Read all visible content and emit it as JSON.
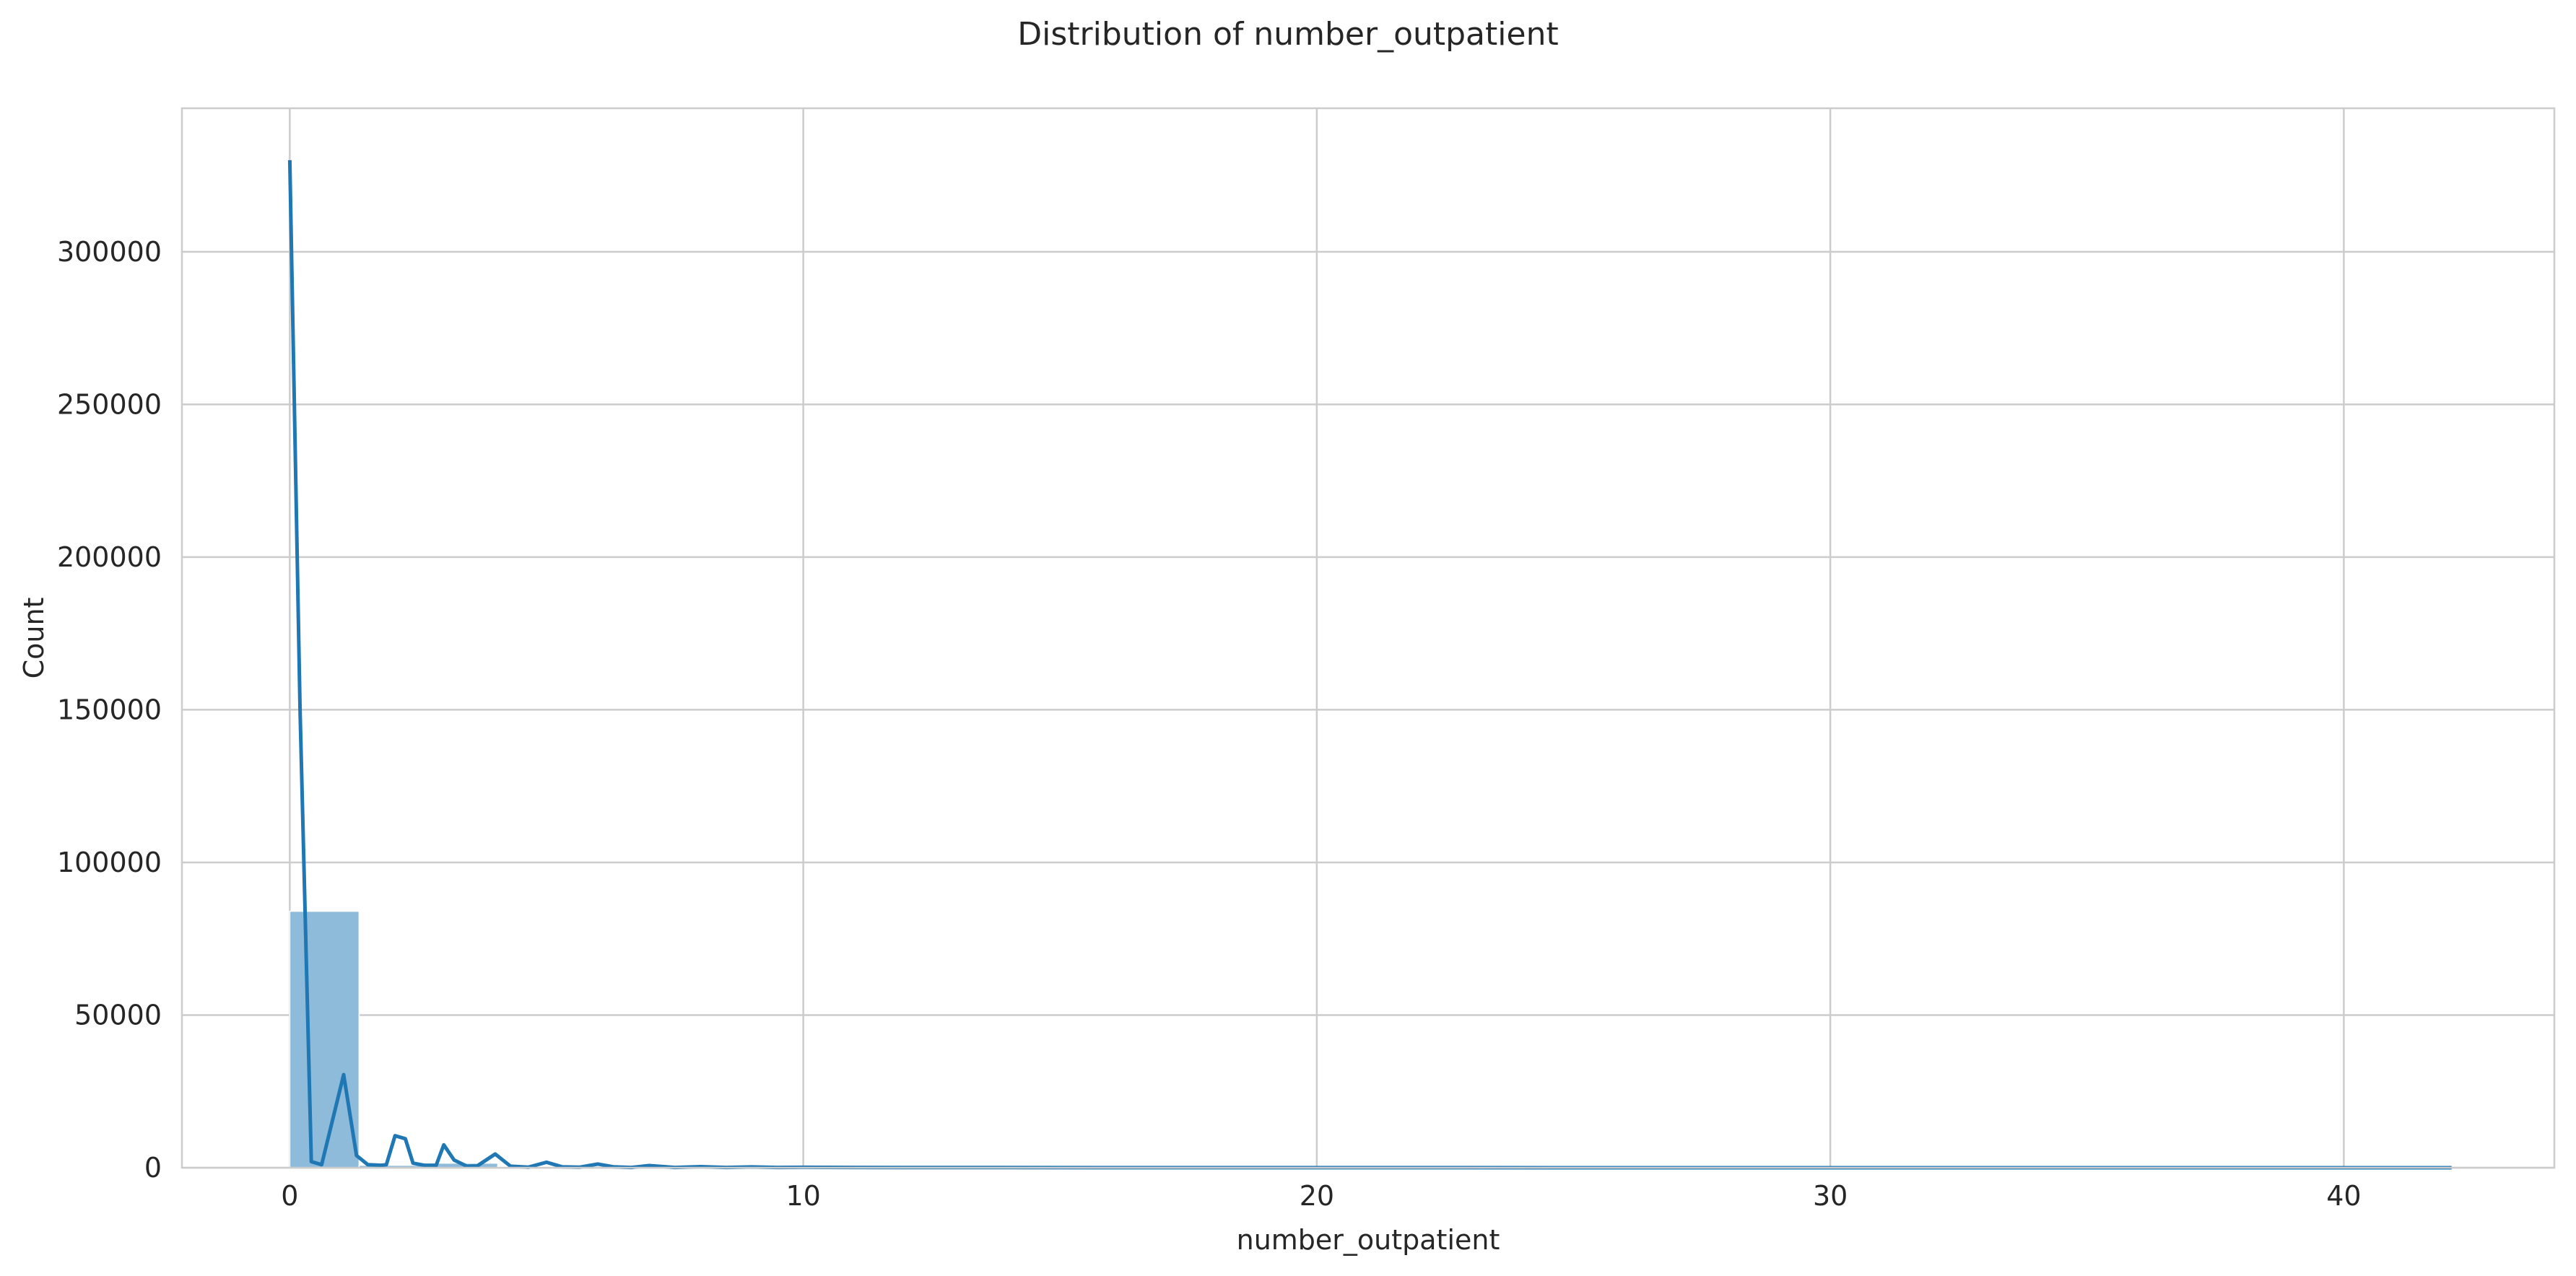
{
  "chart_data": {
    "type": "histogram",
    "title": "Distribution of number_outpatient",
    "xlabel": "number_outpatient",
    "ylabel": "Count",
    "xlim": [
      -2.1,
      44.1
    ],
    "ylim": [
      0,
      347000
    ],
    "x_ticks": [
      0,
      10,
      20,
      30,
      40
    ],
    "y_ticks": [
      0,
      50000,
      100000,
      150000,
      200000,
      250000,
      300000
    ],
    "grid": true,
    "colors": {
      "bar": "#8fbbdb",
      "line": "#1f77b4",
      "grid": "#cccccc",
      "spine": "#cccccc"
    },
    "bins": [
      {
        "x0": 0.0,
        "x1": 1.35,
        "count": 84000
      },
      {
        "x0": 1.35,
        "x1": 2.7,
        "count": 800
      },
      {
        "x0": 2.7,
        "x1": 4.05,
        "count": 1500
      },
      {
        "x0": 4.05,
        "x1": 5.4,
        "count": 300
      }
    ],
    "kde_line": {
      "x": [
        0.0,
        0.2,
        0.42,
        0.62,
        1.05,
        1.3,
        1.52,
        1.78,
        1.88,
        2.05,
        2.25,
        2.4,
        2.62,
        2.85,
        3.0,
        3.2,
        3.45,
        3.65,
        4.0,
        4.15,
        4.3,
        4.65,
        5.0,
        5.3,
        5.65,
        6.0,
        6.3,
        6.65,
        7.0,
        7.5,
        8.0,
        8.5,
        9.0,
        9.5,
        10.0,
        11.0,
        12.0,
        14.0,
        20.0,
        30.0,
        42.1
      ],
      "y": [
        330000,
        150000,
        2000,
        1000,
        30500,
        4000,
        1000,
        800,
        1000,
        10500,
        9500,
        1500,
        800,
        800,
        7500,
        2500,
        500,
        600,
        4500,
        2500,
        500,
        200,
        1800,
        300,
        200,
        1200,
        300,
        100,
        700,
        100,
        350,
        100,
        250,
        100,
        150,
        100,
        60,
        40,
        20,
        10,
        5
      ]
    }
  }
}
